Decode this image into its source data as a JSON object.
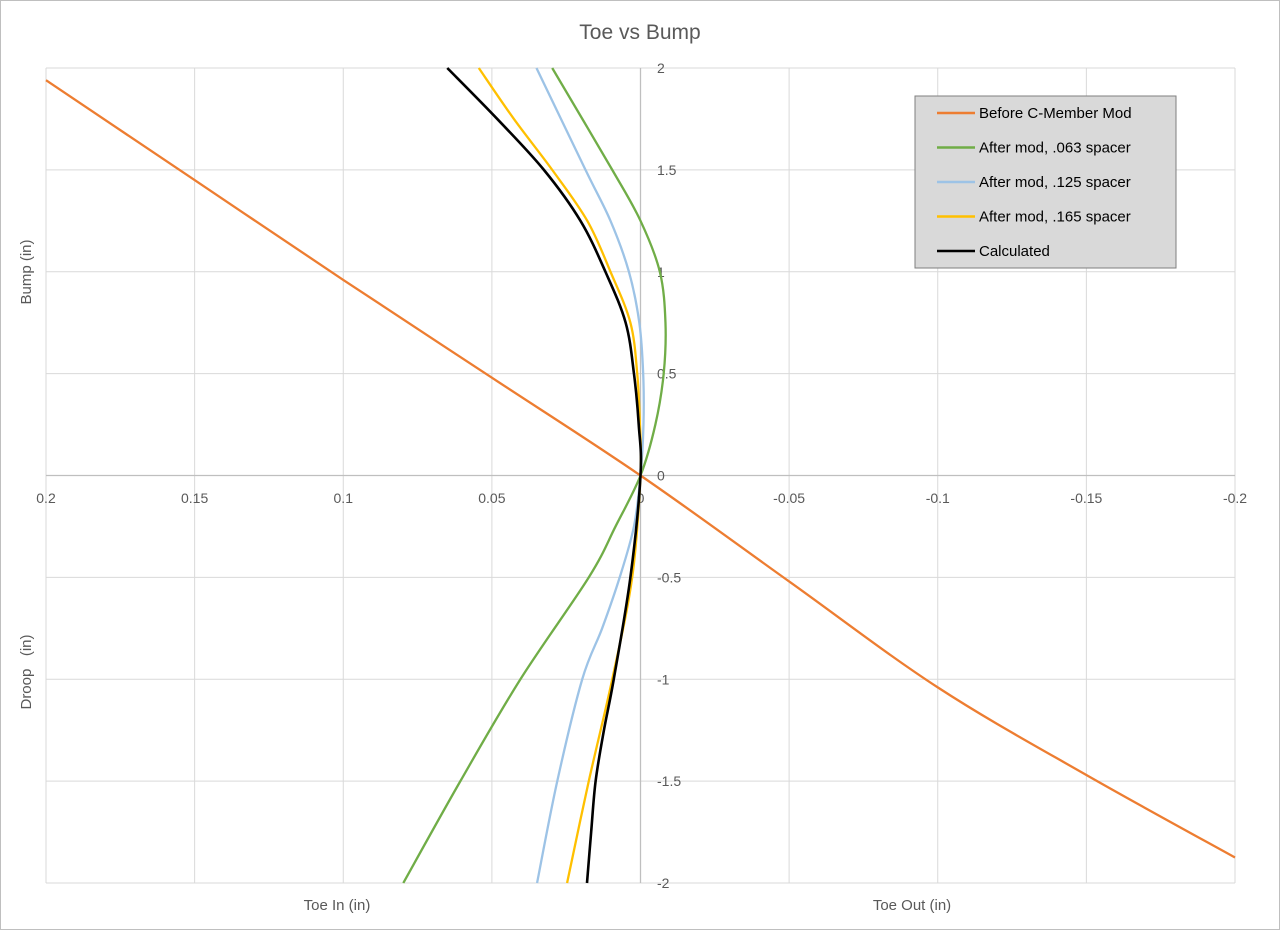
{
  "chart_data": {
    "type": "line",
    "title": "Toe vs Bump",
    "xlabel_left": "Toe In (in)",
    "xlabel_right": "Toe Out (in)",
    "ylabel_top": "Bump (in)",
    "ylabel_bottom": "Droop   (in)",
    "xlim": [
      0.2,
      -0.2
    ],
    "ylim": [
      -2,
      2
    ],
    "x_reversed": true,
    "grid": true,
    "legend_position": "top-right",
    "x_ticks": [
      0.2,
      0.15,
      0.1,
      0.05,
      0,
      -0.05,
      -0.1,
      -0.15,
      -0.2
    ],
    "x_tick_labels": [
      "0.2",
      "0.15",
      "0.1",
      "0.05",
      "0",
      "-0.05",
      "-0.1",
      "-0.15",
      "-0.2"
    ],
    "y_ticks": [
      2,
      1.5,
      1,
      0.5,
      0,
      -0.5,
      -1,
      -1.5,
      -2
    ],
    "y_tick_labels": [
      "2",
      "1.5",
      "1",
      "0.5",
      "0",
      "-0.5",
      "-1",
      "-1.5",
      "-2"
    ],
    "series": [
      {
        "name": "Before C-Member Mod",
        "color": "#ed7d31",
        "points": [
          [
            0.2,
            1.94
          ],
          [
            0.15,
            1.45
          ],
          [
            0.1,
            0.96
          ],
          [
            0.05,
            0.48
          ],
          [
            0,
            0
          ],
          [
            -0.05,
            -0.52
          ],
          [
            -0.1,
            -1.04
          ],
          [
            -0.15,
            -1.47
          ],
          [
            -0.2,
            -1.875
          ]
        ]
      },
      {
        "name": "After mod, .063 spacer",
        "color": "#70ad47",
        "points": [
          [
            0.0798,
            -2
          ],
          [
            0.0606,
            -1.5
          ],
          [
            0.0404,
            -1
          ],
          [
            0.0174,
            -0.5
          ],
          [
            0.0084,
            -0.25
          ],
          [
            0,
            0
          ],
          [
            -0.005,
            0.25
          ],
          [
            -0.0078,
            0.5
          ],
          [
            -0.0084,
            0.75
          ],
          [
            -0.0065,
            1
          ],
          [
            0,
            1.25
          ],
          [
            0.0095,
            1.5
          ],
          [
            0.0297,
            2
          ]
        ]
      },
      {
        "name": "After mod, .125 spacer",
        "color": "#9dc3e6",
        "points": [
          [
            0.0348,
            -2
          ],
          [
            0.028,
            -1.5
          ],
          [
            0.0196,
            -1
          ],
          [
            0.0129,
            -0.75
          ],
          [
            0.007,
            -0.5
          ],
          [
            0.0022,
            -0.25
          ],
          [
            0,
            0
          ],
          [
            -0.001,
            0.25
          ],
          [
            -0.0009,
            0.5
          ],
          [
            0.0004,
            0.75
          ],
          [
            0.0039,
            1
          ],
          [
            0.0101,
            1.25
          ],
          [
            0.0185,
            1.5
          ],
          [
            0.035,
            2
          ]
        ]
      },
      {
        "name": "After mod, .165 spacer",
        "color": "#ffc000",
        "points": [
          [
            0.0247,
            -2
          ],
          [
            0.0174,
            -1.5
          ],
          [
            0.0095,
            -1
          ],
          [
            0.0028,
            -0.5
          ],
          [
            0,
            0
          ],
          [
            0.0002,
            0.25
          ],
          [
            0.0011,
            0.5
          ],
          [
            0.0034,
            0.75
          ],
          [
            0.0101,
            1
          ],
          [
            0.0179,
            1.25
          ],
          [
            0.0297,
            1.5
          ],
          [
            0.0426,
            1.75
          ],
          [
            0.0544,
            2
          ]
        ]
      },
      {
        "name": "Calculated",
        "color": "#000000",
        "points": [
          [
            0.018,
            -2
          ],
          [
            0.0166,
            -1.75
          ],
          [
            0.0151,
            -1.5
          ],
          [
            0.0123,
            -1.25
          ],
          [
            0.009,
            -1
          ],
          [
            0.0034,
            -0.5
          ],
          [
            0,
            0
          ],
          [
            0.0006,
            0.25
          ],
          [
            0.0022,
            0.5
          ],
          [
            0.005,
            0.75
          ],
          [
            0.0118,
            1
          ],
          [
            0.0202,
            1.25
          ],
          [
            0.0325,
            1.5
          ],
          [
            0.0482,
            1.75
          ],
          [
            0.065,
            2
          ]
        ]
      }
    ]
  }
}
